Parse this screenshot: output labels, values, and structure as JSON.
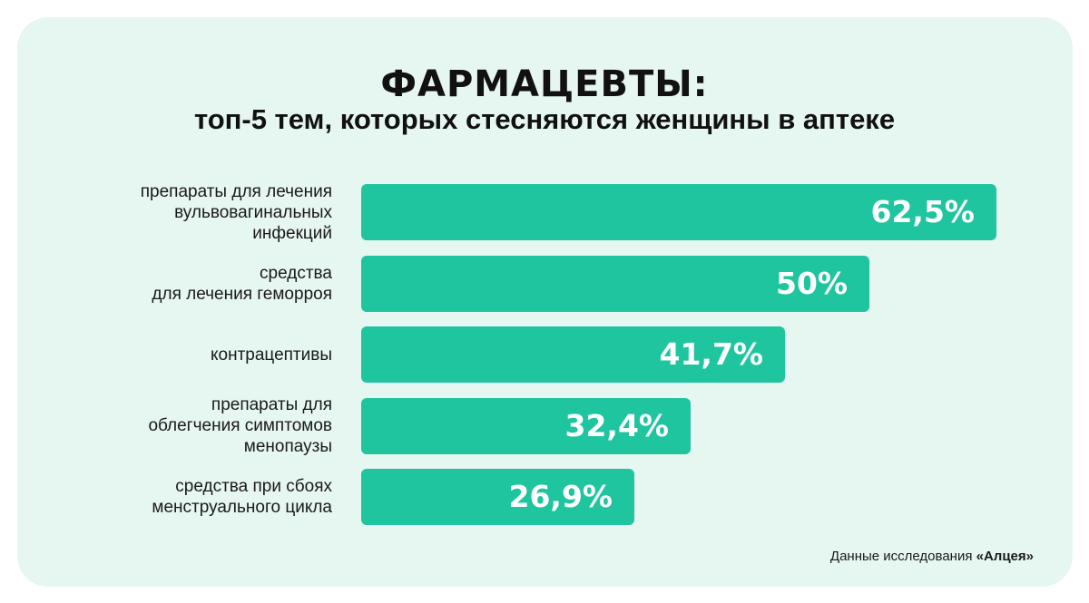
{
  "chart_data": {
    "type": "bar",
    "orientation": "horizontal",
    "title": "ФАРМАЦЕВТЫ:",
    "subtitle": "топ-5 тем, которых стесняются женщины в аптеке",
    "categories": [
      "препараты для лечения\nвульвовагинальных\nинфекций",
      "средства\nдля лечения геморроя",
      "контрацептивы",
      "препараты для\nоблегчения симптомов\nменопаузы",
      "средства при сбоях\nменструального цикла"
    ],
    "values": [
      62.5,
      50,
      41.7,
      32.4,
      26.9
    ],
    "value_labels": [
      "62,5%",
      "50%",
      "41,7%",
      "32,4%",
      "26,9%"
    ],
    "xlim": [
      0,
      100
    ],
    "grid": false,
    "bar_color": "#1fc59f"
  },
  "source": {
    "prefix": "Данные исследования ",
    "name": "«Алцея»"
  },
  "colors": {
    "background_card": "#e6f6f1",
    "bar": "#1fc59f",
    "text": "#111111"
  }
}
